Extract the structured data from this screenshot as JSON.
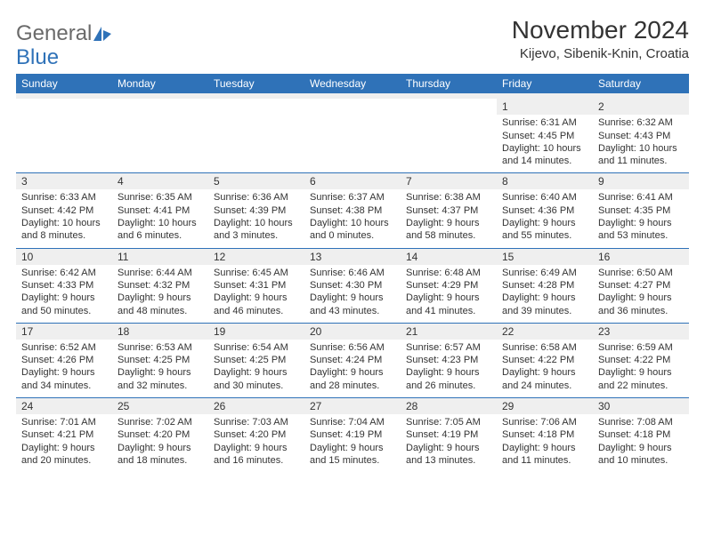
{
  "logo": {
    "text1": "General",
    "text2": "Blue"
  },
  "title": "November 2024",
  "location": "Kijevo, Sibenik-Knin, Croatia",
  "day_headers": [
    "Sunday",
    "Monday",
    "Tuesday",
    "Wednesday",
    "Thursday",
    "Friday",
    "Saturday"
  ],
  "colors": {
    "header_bg": "#2f72b8",
    "header_fg": "#ffffff",
    "daynum_bg": "#efefef",
    "border": "#2f72b8",
    "text": "#333333",
    "logo_gray": "#6a6a6a",
    "logo_blue": "#2f72b8",
    "page_bg": "#ffffff"
  },
  "weeks": [
    [
      {
        "n": "",
        "lines": []
      },
      {
        "n": "",
        "lines": []
      },
      {
        "n": "",
        "lines": []
      },
      {
        "n": "",
        "lines": []
      },
      {
        "n": "",
        "lines": []
      },
      {
        "n": "1",
        "lines": [
          "Sunrise: 6:31 AM",
          "Sunset: 4:45 PM",
          "Daylight: 10 hours",
          "and 14 minutes."
        ]
      },
      {
        "n": "2",
        "lines": [
          "Sunrise: 6:32 AM",
          "Sunset: 4:43 PM",
          "Daylight: 10 hours",
          "and 11 minutes."
        ]
      }
    ],
    [
      {
        "n": "3",
        "lines": [
          "Sunrise: 6:33 AM",
          "Sunset: 4:42 PM",
          "Daylight: 10 hours",
          "and 8 minutes."
        ]
      },
      {
        "n": "4",
        "lines": [
          "Sunrise: 6:35 AM",
          "Sunset: 4:41 PM",
          "Daylight: 10 hours",
          "and 6 minutes."
        ]
      },
      {
        "n": "5",
        "lines": [
          "Sunrise: 6:36 AM",
          "Sunset: 4:39 PM",
          "Daylight: 10 hours",
          "and 3 minutes."
        ]
      },
      {
        "n": "6",
        "lines": [
          "Sunrise: 6:37 AM",
          "Sunset: 4:38 PM",
          "Daylight: 10 hours",
          "and 0 minutes."
        ]
      },
      {
        "n": "7",
        "lines": [
          "Sunrise: 6:38 AM",
          "Sunset: 4:37 PM",
          "Daylight: 9 hours",
          "and 58 minutes."
        ]
      },
      {
        "n": "8",
        "lines": [
          "Sunrise: 6:40 AM",
          "Sunset: 4:36 PM",
          "Daylight: 9 hours",
          "and 55 minutes."
        ]
      },
      {
        "n": "9",
        "lines": [
          "Sunrise: 6:41 AM",
          "Sunset: 4:35 PM",
          "Daylight: 9 hours",
          "and 53 minutes."
        ]
      }
    ],
    [
      {
        "n": "10",
        "lines": [
          "Sunrise: 6:42 AM",
          "Sunset: 4:33 PM",
          "Daylight: 9 hours",
          "and 50 minutes."
        ]
      },
      {
        "n": "11",
        "lines": [
          "Sunrise: 6:44 AM",
          "Sunset: 4:32 PM",
          "Daylight: 9 hours",
          "and 48 minutes."
        ]
      },
      {
        "n": "12",
        "lines": [
          "Sunrise: 6:45 AM",
          "Sunset: 4:31 PM",
          "Daylight: 9 hours",
          "and 46 minutes."
        ]
      },
      {
        "n": "13",
        "lines": [
          "Sunrise: 6:46 AM",
          "Sunset: 4:30 PM",
          "Daylight: 9 hours",
          "and 43 minutes."
        ]
      },
      {
        "n": "14",
        "lines": [
          "Sunrise: 6:48 AM",
          "Sunset: 4:29 PM",
          "Daylight: 9 hours",
          "and 41 minutes."
        ]
      },
      {
        "n": "15",
        "lines": [
          "Sunrise: 6:49 AM",
          "Sunset: 4:28 PM",
          "Daylight: 9 hours",
          "and 39 minutes."
        ]
      },
      {
        "n": "16",
        "lines": [
          "Sunrise: 6:50 AM",
          "Sunset: 4:27 PM",
          "Daylight: 9 hours",
          "and 36 minutes."
        ]
      }
    ],
    [
      {
        "n": "17",
        "lines": [
          "Sunrise: 6:52 AM",
          "Sunset: 4:26 PM",
          "Daylight: 9 hours",
          "and 34 minutes."
        ]
      },
      {
        "n": "18",
        "lines": [
          "Sunrise: 6:53 AM",
          "Sunset: 4:25 PM",
          "Daylight: 9 hours",
          "and 32 minutes."
        ]
      },
      {
        "n": "19",
        "lines": [
          "Sunrise: 6:54 AM",
          "Sunset: 4:25 PM",
          "Daylight: 9 hours",
          "and 30 minutes."
        ]
      },
      {
        "n": "20",
        "lines": [
          "Sunrise: 6:56 AM",
          "Sunset: 4:24 PM",
          "Daylight: 9 hours",
          "and 28 minutes."
        ]
      },
      {
        "n": "21",
        "lines": [
          "Sunrise: 6:57 AM",
          "Sunset: 4:23 PM",
          "Daylight: 9 hours",
          "and 26 minutes."
        ]
      },
      {
        "n": "22",
        "lines": [
          "Sunrise: 6:58 AM",
          "Sunset: 4:22 PM",
          "Daylight: 9 hours",
          "and 24 minutes."
        ]
      },
      {
        "n": "23",
        "lines": [
          "Sunrise: 6:59 AM",
          "Sunset: 4:22 PM",
          "Daylight: 9 hours",
          "and 22 minutes."
        ]
      }
    ],
    [
      {
        "n": "24",
        "lines": [
          "Sunrise: 7:01 AM",
          "Sunset: 4:21 PM",
          "Daylight: 9 hours",
          "and 20 minutes."
        ]
      },
      {
        "n": "25",
        "lines": [
          "Sunrise: 7:02 AM",
          "Sunset: 4:20 PM",
          "Daylight: 9 hours",
          "and 18 minutes."
        ]
      },
      {
        "n": "26",
        "lines": [
          "Sunrise: 7:03 AM",
          "Sunset: 4:20 PM",
          "Daylight: 9 hours",
          "and 16 minutes."
        ]
      },
      {
        "n": "27",
        "lines": [
          "Sunrise: 7:04 AM",
          "Sunset: 4:19 PM",
          "Daylight: 9 hours",
          "and 15 minutes."
        ]
      },
      {
        "n": "28",
        "lines": [
          "Sunrise: 7:05 AM",
          "Sunset: 4:19 PM",
          "Daylight: 9 hours",
          "and 13 minutes."
        ]
      },
      {
        "n": "29",
        "lines": [
          "Sunrise: 7:06 AM",
          "Sunset: 4:18 PM",
          "Daylight: 9 hours",
          "and 11 minutes."
        ]
      },
      {
        "n": "30",
        "lines": [
          "Sunrise: 7:08 AM",
          "Sunset: 4:18 PM",
          "Daylight: 9 hours",
          "and 10 minutes."
        ]
      }
    ]
  ]
}
